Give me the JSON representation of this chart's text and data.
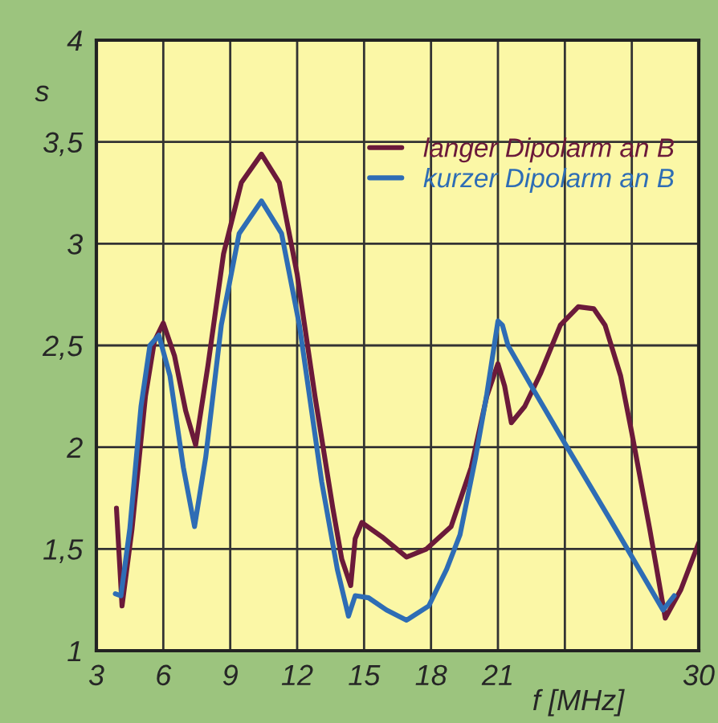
{
  "chart_data": {
    "type": "line",
    "xlabel": "f [MHz]",
    "ylabel": "s",
    "xlim": [
      3,
      30
    ],
    "ylim": [
      1,
      4
    ],
    "xticks": [
      3,
      6,
      9,
      12,
      15,
      18,
      21,
      {
        "value": 24,
        "label": null
      },
      {
        "value": 27,
        "label": null
      },
      30
    ],
    "yticks": [
      1,
      {
        "value": 1.5,
        "label": "1,5"
      },
      2,
      {
        "value": 2.5,
        "label": "2,5"
      },
      3,
      {
        "value": 3.5,
        "label": "3,5"
      },
      4
    ],
    "grid": true,
    "legend": "top right",
    "marker": "none",
    "line_style": "solid",
    "series": [
      {
        "name": "langer Dipolarm an B",
        "color": "#6b1a3a",
        "x": [
          3.9,
          4.15,
          4.6,
          5.2,
          5.6,
          6.0,
          6.5,
          7.0,
          7.45,
          8.0,
          8.7,
          9.5,
          10.4,
          11.2,
          12.0,
          12.8,
          13.6,
          14.0,
          14.4,
          14.6,
          14.9,
          15.8,
          16.9,
          17.8,
          18.9,
          19.8,
          20.5,
          21.0,
          21.3,
          21.6,
          22.2,
          22.9,
          23.8,
          24.6,
          25.3,
          25.8,
          26.5,
          27.0,
          27.8,
          28.5,
          29.2,
          30
        ],
        "values": [
          1.7,
          1.22,
          1.6,
          2.25,
          2.52,
          2.61,
          2.45,
          2.18,
          2.01,
          2.4,
          2.95,
          3.3,
          3.44,
          3.3,
          2.85,
          2.25,
          1.7,
          1.45,
          1.32,
          1.55,
          1.63,
          1.56,
          1.46,
          1.5,
          1.61,
          1.9,
          2.25,
          2.41,
          2.3,
          2.12,
          2.2,
          2.36,
          2.6,
          2.69,
          2.68,
          2.6,
          2.35,
          2.07,
          1.6,
          1.16,
          1.3,
          1.53
        ]
      },
      {
        "name": "kurzer Dipolarm an B",
        "color": "#2e6db5",
        "x": [
          3.85,
          4.1,
          4.5,
          5.0,
          5.4,
          5.8,
          6.3,
          6.9,
          7.4,
          7.9,
          8.6,
          9.4,
          10.4,
          11.3,
          12.1,
          13.1,
          13.8,
          14.3,
          14.6,
          15.2,
          16.0,
          16.9,
          17.9,
          18.7,
          19.3,
          20.0,
          20.5,
          21.0,
          21.2,
          21.45,
          22.5,
          24.1,
          26.0,
          28.4,
          28.9
        ],
        "values": [
          1.28,
          1.27,
          1.6,
          2.2,
          2.5,
          2.55,
          2.35,
          1.9,
          1.61,
          1.95,
          2.6,
          3.05,
          3.21,
          3.05,
          2.6,
          1.83,
          1.4,
          1.17,
          1.27,
          1.26,
          1.2,
          1.15,
          1.22,
          1.4,
          1.57,
          1.95,
          2.26,
          2.62,
          2.6,
          2.5,
          2.3,
          2.0,
          1.65,
          1.2,
          1.27
        ]
      }
    ]
  }
}
